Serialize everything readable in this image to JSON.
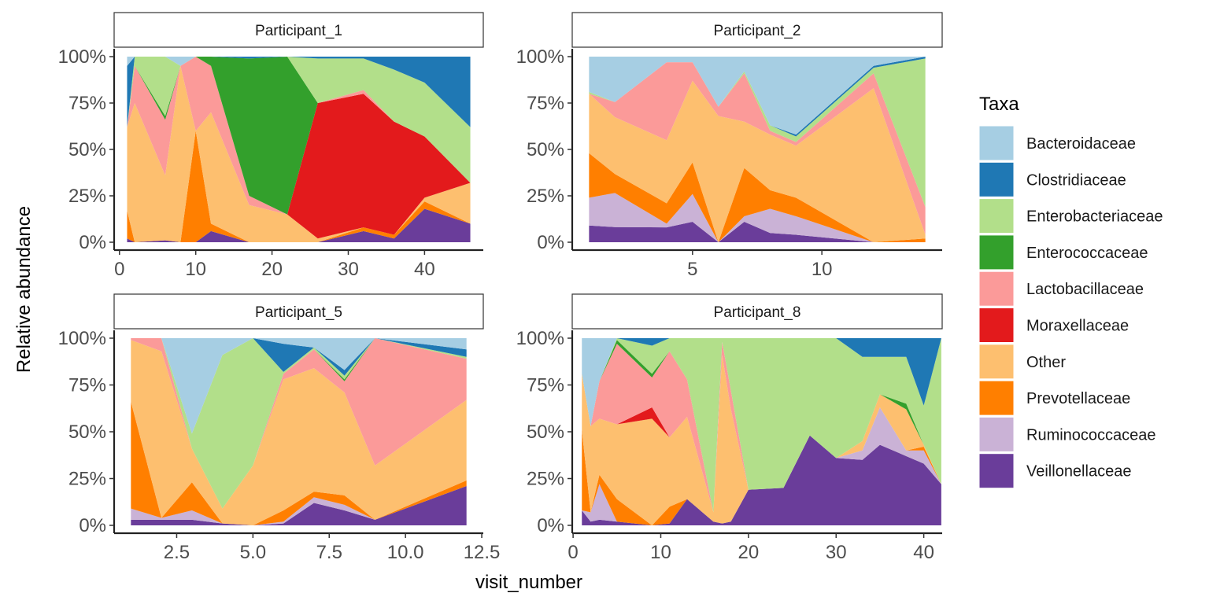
{
  "chart_data": {
    "type": "area",
    "stacked": true,
    "normalized": true,
    "xlabel": "visit_number",
    "ylabel": "Relative abundance",
    "ylim": [
      0,
      1
    ],
    "y_ticks": [
      "0%",
      "25%",
      "50%",
      "75%",
      "100%"
    ],
    "legend": {
      "title": "Taxa",
      "position": "right",
      "order": [
        "Bacteroidaceae",
        "Clostridiaceae",
        "Enterobacteriaceae",
        "Enterococcaceae",
        "Lactobacillaceae",
        "Moraxellaceae",
        "Other",
        "Prevotellaceae",
        "Ruminococcaceae",
        "Veillonellaceae"
      ]
    },
    "colors": {
      "Bacteroidaceae": "#A6CEE3",
      "Clostridiaceae": "#1F78B4",
      "Enterobacteriaceae": "#B2DF8A",
      "Enterococcaceae": "#33A02C",
      "Lactobacillaceae": "#FB9A99",
      "Moraxellaceae": "#E31A1C",
      "Other": "#FDBF6F",
      "Prevotellaceae": "#FF7F00",
      "Ruminococcaceae": "#CAB2D6",
      "Veillonellaceae": "#6A3D9A"
    },
    "facets": [
      {
        "strip": "Participant_1",
        "xlim": [
          -0.7,
          47.7
        ],
        "x_ticks": [
          {
            "v": 0,
            "label": "0"
          },
          {
            "v": 10,
            "label": "10"
          },
          {
            "v": 20,
            "label": "20"
          },
          {
            "v": 30,
            "label": "30"
          },
          {
            "v": 40,
            "label": "40"
          }
        ],
        "x": [
          1,
          2,
          6,
          8,
          10,
          12,
          17,
          22,
          26,
          32,
          36,
          40,
          46
        ],
        "series": {
          "Veillonellaceae": [
            0.02,
            0.0,
            0.01,
            0.0,
            0.0,
            0.06,
            0.0,
            0.0,
            0.0,
            0.06,
            0.02,
            0.18,
            0.1
          ],
          "Ruminococcaceae": [
            0.0,
            0.0,
            0.0,
            0.0,
            0.0,
            0.0,
            0.0,
            0.0,
            0.0,
            0.0,
            0.0,
            0.0,
            0.0
          ],
          "Prevotellaceae": [
            0.15,
            0.0,
            0.0,
            0.0,
            0.6,
            0.04,
            0.0,
            0.0,
            0.0,
            0.02,
            0.02,
            0.04,
            0.0
          ],
          "Other": [
            0.45,
            0.75,
            0.35,
            0.95,
            0.0,
            0.6,
            0.2,
            0.15,
            0.02,
            0.0,
            0.0,
            0.02,
            0.22
          ],
          "Moraxellaceae": [
            0.0,
            0.0,
            0.0,
            0.0,
            0.0,
            0.0,
            0.0,
            0.0,
            0.73,
            0.72,
            0.61,
            0.33,
            0.0
          ],
          "Lactobacillaceae": [
            0.0,
            0.2,
            0.3,
            0.0,
            0.4,
            0.25,
            0.05,
            0.0,
            0.0,
            0.02,
            0.0,
            0.0,
            0.0
          ],
          "Enterococcaceae": [
            0.0,
            0.0,
            0.02,
            0.0,
            0.0,
            0.05,
            0.74,
            0.85,
            0.0,
            0.0,
            0.0,
            0.0,
            0.0
          ],
          "Enterobacteriaceae": [
            0.0,
            0.05,
            0.32,
            0.0,
            0.0,
            0.0,
            0.0,
            0.0,
            0.24,
            0.17,
            0.28,
            0.29,
            0.3
          ],
          "Clostridiaceae": [
            0.33,
            0.0,
            0.0,
            0.0,
            0.0,
            0.0,
            0.01,
            0.0,
            0.01,
            0.01,
            0.07,
            0.14,
            0.38
          ],
          "Bacteroidaceae": [
            0.05,
            0.0,
            0.0,
            0.05,
            0.0,
            0.0,
            0.0,
            0.0,
            0.0,
            0.0,
            0.0,
            0.0,
            0.0
          ]
        }
      },
      {
        "strip": "Participant_2",
        "xlim": [
          0.35,
          14.65
        ],
        "x_ticks": [
          {
            "v": 5,
            "label": "5"
          },
          {
            "v": 10,
            "label": "10"
          }
        ],
        "x": [
          1,
          2,
          4,
          5,
          6,
          7,
          8,
          9,
          12,
          14
        ],
        "series": {
          "Veillonellaceae": [
            0.09,
            0.08,
            0.08,
            0.11,
            0.0,
            0.11,
            0.05,
            0.04,
            0.0,
            0.0
          ],
          "Ruminococcaceae": [
            0.15,
            0.18,
            0.02,
            0.15,
            0.0,
            0.03,
            0.13,
            0.1,
            0.0,
            0.0
          ],
          "Prevotellaceae": [
            0.24,
            0.1,
            0.11,
            0.17,
            0.0,
            0.26,
            0.1,
            0.1,
            0.0,
            0.02
          ],
          "Other": [
            0.32,
            0.3,
            0.34,
            0.44,
            0.68,
            0.25,
            0.3,
            0.28,
            0.83,
            0.02
          ],
          "Moraxellaceae": [
            0.0,
            0.0,
            0.0,
            0.0,
            0.0,
            0.0,
            0.0,
            0.0,
            0.0,
            0.0
          ],
          "Lactobacillaceae": [
            0.0,
            0.08,
            0.42,
            0.1,
            0.05,
            0.26,
            0.02,
            0.02,
            0.08,
            0.15
          ],
          "Enterococcaceae": [
            0.0,
            0.0,
            0.0,
            0.0,
            0.0,
            0.0,
            0.0,
            0.0,
            0.0,
            0.0
          ],
          "Enterobacteriaceae": [
            0.01,
            0.0,
            0.0,
            0.0,
            0.0,
            0.01,
            0.03,
            0.03,
            0.03,
            0.8
          ],
          "Clostridiaceae": [
            0.0,
            0.0,
            0.0,
            0.0,
            0.0,
            0.0,
            0.0,
            0.01,
            0.01,
            0.01
          ],
          "Bacteroidaceae": [
            0.19,
            0.24,
            0.03,
            0.03,
            0.27,
            0.08,
            0.37,
            0.42,
            0.05,
            0.0
          ]
        }
      },
      {
        "strip": "Participant_5",
        "xlim": [
          0.45,
          12.55
        ],
        "x_ticks": [
          {
            "v": 2.5,
            "label": "2.5"
          },
          {
            "v": 5,
            "label": "5.0"
          },
          {
            "v": 7.5,
            "label": "7.5"
          },
          {
            "v": 10,
            "label": "10.0"
          },
          {
            "v": 12.5,
            "label": "12.5"
          }
        ],
        "x": [
          1,
          2,
          3,
          4,
          5,
          6,
          7,
          8,
          9,
          12
        ],
        "series": {
          "Veillonellaceae": [
            0.03,
            0.03,
            0.03,
            0.01,
            0.0,
            0.01,
            0.12,
            0.08,
            0.03,
            0.21
          ],
          "Ruminococcaceae": [
            0.06,
            0.01,
            0.05,
            0.0,
            0.0,
            0.01,
            0.03,
            0.03,
            0.0,
            0.0
          ],
          "Prevotellaceae": [
            0.57,
            0.0,
            0.15,
            0.0,
            0.0,
            0.06,
            0.03,
            0.05,
            0.0,
            0.03
          ],
          "Other": [
            0.33,
            0.89,
            0.18,
            0.08,
            0.32,
            0.7,
            0.66,
            0.55,
            0.29,
            0.43
          ],
          "Moraxellaceae": [
            0.0,
            0.0,
            0.0,
            0.0,
            0.0,
            0.0,
            0.0,
            0.0,
            0.0,
            0.0
          ],
          "Lactobacillaceae": [
            0.01,
            0.07,
            0.0,
            0.0,
            0.0,
            0.03,
            0.1,
            0.06,
            0.68,
            0.22
          ],
          "Enterococcaceae": [
            0.0,
            0.0,
            0.0,
            0.0,
            0.0,
            0.0,
            0.0,
            0.01,
            0.0,
            0.0
          ],
          "Enterobacteriaceae": [
            0.0,
            0.0,
            0.08,
            0.82,
            0.68,
            0.01,
            0.01,
            0.02,
            0.0,
            0.01
          ],
          "Clostridiaceae": [
            0.0,
            0.0,
            0.0,
            0.0,
            0.0,
            0.15,
            0.0,
            0.03,
            0.0,
            0.04
          ],
          "Bacteroidaceae": [
            0.0,
            0.0,
            0.51,
            0.09,
            0.0,
            0.03,
            0.05,
            0.17,
            0.0,
            0.06
          ]
        }
      },
      {
        "strip": "Participant_8",
        "xlim": [
          -0.1,
          42.1
        ],
        "x_ticks": [
          {
            "v": 0,
            "label": "0"
          },
          {
            "v": 10,
            "label": "10"
          },
          {
            "v": 20,
            "label": "20"
          },
          {
            "v": 30,
            "label": "30"
          },
          {
            "v": 40,
            "label": "40"
          }
        ],
        "x": [
          1,
          2,
          3,
          5,
          9,
          11,
          13,
          16,
          17,
          18,
          20,
          24,
          27,
          30,
          33,
          35,
          38,
          40,
          42
        ],
        "series": {
          "Veillonellaceae": [
            0.08,
            0.02,
            0.03,
            0.02,
            0.0,
            0.01,
            0.14,
            0.02,
            0.01,
            0.02,
            0.19,
            0.2,
            0.48,
            0.36,
            0.35,
            0.43,
            0.37,
            0.33,
            0.22
          ],
          "Ruminococcaceae": [
            0.0,
            0.05,
            0.19,
            0.0,
            0.0,
            0.0,
            0.0,
            0.0,
            0.0,
            0.0,
            0.0,
            0.0,
            0.0,
            0.0,
            0.05,
            0.2,
            0.03,
            0.07,
            0.0
          ],
          "Prevotellaceae": [
            0.43,
            0.0,
            0.05,
            0.12,
            0.0,
            0.09,
            0.0,
            0.0,
            0.0,
            0.0,
            0.0,
            0.0,
            0.0,
            0.0,
            0.0,
            0.0,
            0.0,
            0.02,
            0.0
          ],
          "Other": [
            0.3,
            0.46,
            0.3,
            0.4,
            0.57,
            0.37,
            0.44,
            0.05,
            0.9,
            0.6,
            0.0,
            0.0,
            0.0,
            0.0,
            0.05,
            0.07,
            0.22,
            0.01,
            0.0
          ],
          "Moraxellaceae": [
            0.0,
            0.0,
            0.0,
            0.0,
            0.06,
            0.0,
            0.0,
            0.0,
            0.0,
            0.0,
            0.0,
            0.0,
            0.0,
            0.0,
            0.0,
            0.0,
            0.0,
            0.0,
            0.0
          ],
          "Lactobacillaceae": [
            0.0,
            0.0,
            0.2,
            0.43,
            0.16,
            0.46,
            0.2,
            0.0,
            0.07,
            0.1,
            0.0,
            0.0,
            0.0,
            0.0,
            0.0,
            0.0,
            0.0,
            0.0,
            0.0
          ],
          "Enterococcaceae": [
            0.0,
            0.0,
            0.0,
            0.02,
            0.02,
            0.0,
            0.0,
            0.0,
            0.0,
            0.0,
            0.0,
            0.0,
            0.0,
            0.0,
            0.0,
            0.0,
            0.03,
            0.0,
            0.0
          ],
          "Enterobacteriaceae": [
            0.0,
            0.0,
            0.0,
            0.01,
            0.15,
            0.07,
            0.22,
            0.93,
            0.02,
            0.28,
            0.81,
            0.8,
            0.52,
            0.64,
            0.45,
            0.2,
            0.25,
            0.21,
            0.78
          ],
          "Clostridiaceae": [
            0.0,
            0.0,
            0.0,
            0.0,
            0.04,
            0.0,
            0.0,
            0.0,
            0.0,
            0.0,
            0.0,
            0.0,
            0.0,
            0.0,
            0.1,
            0.1,
            0.1,
            0.36,
            0.0
          ],
          "Bacteroidaceae": [
            0.19,
            0.47,
            0.23,
            0.0,
            0.0,
            0.0,
            0.0,
            0.0,
            0.0,
            0.0,
            0.0,
            0.0,
            0.0,
            0.0,
            0.0,
            0.0,
            0.0,
            0.0,
            0.0
          ]
        }
      }
    ]
  }
}
